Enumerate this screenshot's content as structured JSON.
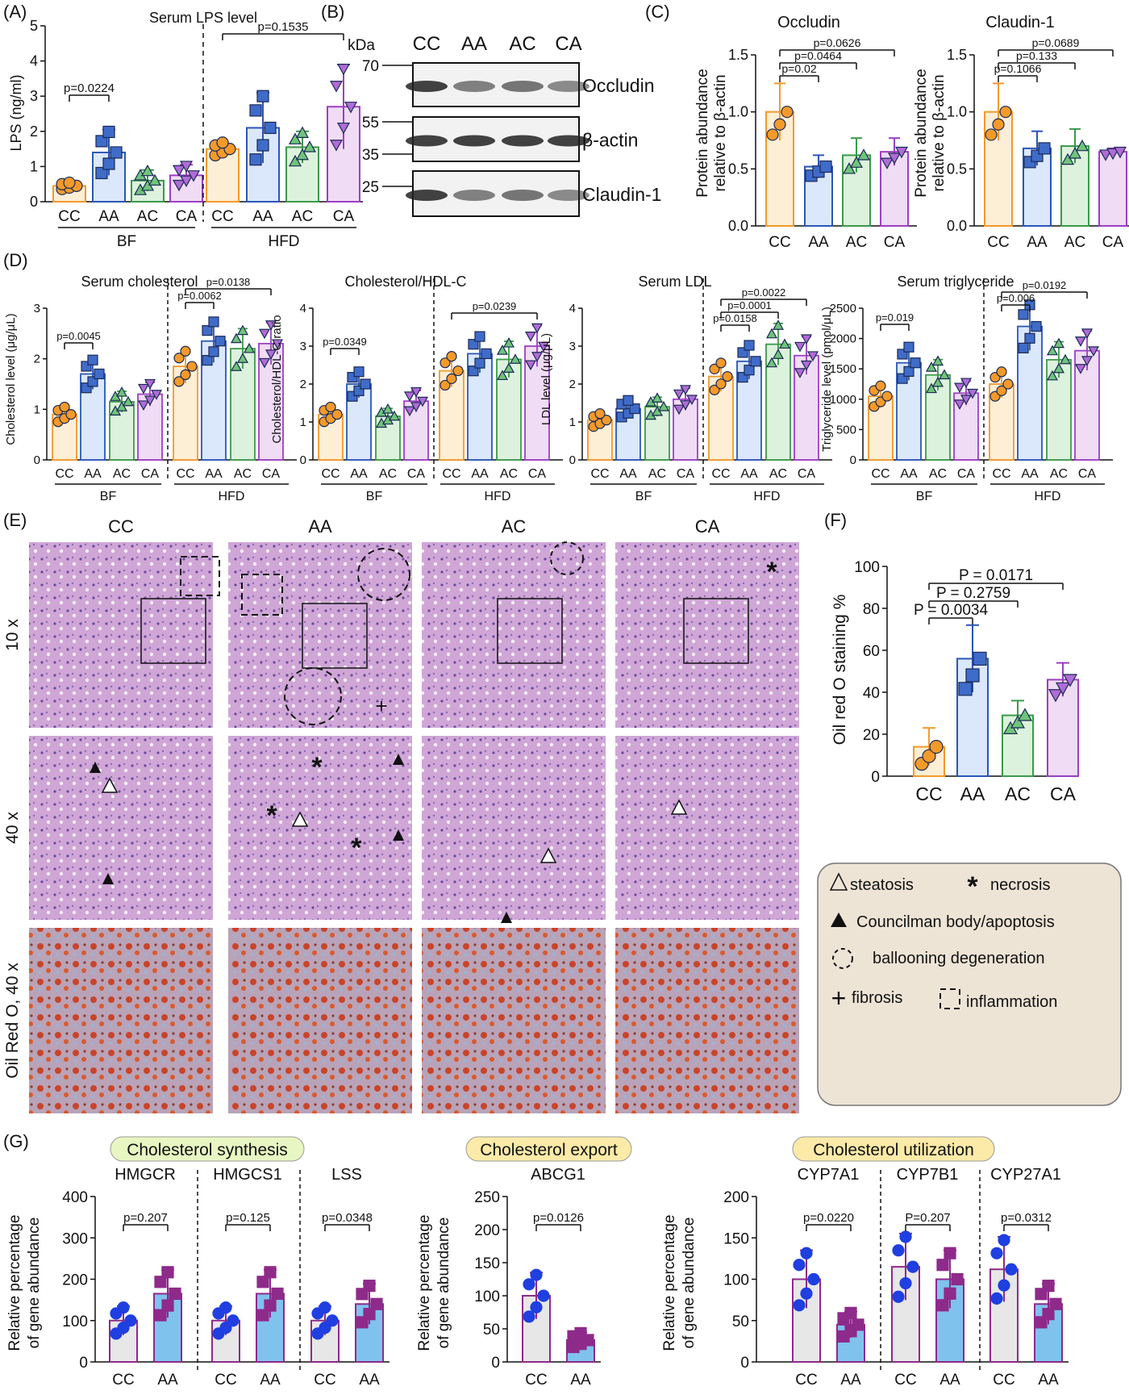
{
  "panel_labels": {
    "A": "(A)",
    "B": "(B)",
    "C": "(C)",
    "D": "(D)",
    "E": "(E)",
    "F": "(F)",
    "G": "(G)"
  },
  "colors": {
    "CC_fill": "#fdeed6",
    "CC_edge": "#f39a2a",
    "AA_fill": "#dbe8fb",
    "AA_edge": "#2b56b8",
    "AC_fill": "#ddf2dd",
    "AC_edge": "#3a9a4a",
    "CA_fill": "#f0dcf5",
    "CA_edge": "#9c3fc4",
    "G_CC_fill": "#e7e7e7",
    "G_AA_fill": "#7fc2ee",
    "G_edge": "#8e2a8a",
    "G_CC_pt": "#1f3fe0",
    "G_AA_pt": "#8e2a8a",
    "he_bg": "#c9a0d0",
    "oil_bg": "#c28e8c",
    "legend_bg": "#ede4d6",
    "tag_green": "#e7f6c2",
    "tag_yellow": "#fbeaa8"
  },
  "panelA": {
    "title": "Serum LPS level",
    "ylabel": "LPS (ng/ml)",
    "group_labels": [
      "BF",
      "HFD"
    ],
    "pvalues": [
      "p=0.0224",
      "p=0.1535"
    ]
  },
  "panelB": {
    "kda_label": "kDa",
    "markers": [
      "70",
      "55",
      "35",
      "25"
    ],
    "lanes": [
      "CC",
      "AA",
      "AC",
      "CA"
    ],
    "bands": [
      "Occludin",
      "β-actin",
      "Claudin-1"
    ]
  },
  "panelC": {
    "ylabel_1": "Protein abundance",
    "ylabel_2": "relative to β-actin",
    "occludin_p": [
      "p=0.02",
      "p=0.0464",
      "p=0.0626"
    ],
    "claudin_p": [
      "p=0.1066",
      "p=0.133",
      "p=0.0689"
    ]
  },
  "panelD": {
    "group_labels": [
      "BF",
      "HFD"
    ],
    "pvalues": {
      "chol": [
        "p=0.0045",
        "p=0.0062",
        "p=0.0138"
      ],
      "ratio": [
        "p=0.0349",
        "p=0.0239"
      ],
      "ldl": [
        "p=0.0158",
        "p=0.0001",
        "p=0.0022"
      ],
      "tg": [
        "p=0.019",
        "p=0.006",
        "p=0.0192"
      ]
    }
  },
  "panelE": {
    "columns": [
      "CC",
      "AA",
      "AC",
      "CA"
    ],
    "rows": [
      "10 x",
      "40 x",
      "Oil Red O, 40 x"
    ],
    "legend": {
      "steatosis": "steatosis",
      "necrosis": "necrosis",
      "councilman": "Councilman body/apoptosis",
      "ballooning": "ballooning degeneration",
      "fibrosis": "fibrosis",
      "inflammation": "inflammation"
    }
  },
  "panelF": {
    "ylabel": "Oil red O staining %",
    "pvalues": [
      "P = 0.0034",
      "P = 0.2759",
      "P = 0.0171"
    ],
    "pvalue_prefix": "P"
  },
  "panelG": {
    "tags": [
      "Cholesterol synthesis",
      "Cholesterol export",
      "Cholesterol utilization"
    ],
    "ylabel_1": "Relative percentage",
    "ylabel_2": "of gene abundance",
    "pvalues": {
      "HMGCR": "p=0.207",
      "HMGCS1": "p=0.125",
      "LSS": "p=0.0348",
      "ABCG1": "p=0.0126",
      "CYP7A1": "p=0.0220",
      "CYP7B1": "P=0.207",
      "CYP27A1": "p=0.0312"
    }
  },
  "chart_data": [
    {
      "id": "A",
      "type": "bar",
      "title": "Serum LPS level",
      "xlabel": "",
      "ylabel": "LPS (ng/ml)",
      "ylim": [
        0,
        5
      ],
      "groups": [
        "BF",
        "HFD"
      ],
      "categories": [
        "CC",
        "AA",
        "AC",
        "CA"
      ],
      "series": [
        {
          "name": "BF",
          "values": [
            0.45,
            1.4,
            0.6,
            0.75
          ],
          "sd": [
            0.1,
            0.65,
            0.3,
            0.3
          ]
        },
        {
          "name": "HFD",
          "values": [
            1.5,
            2.1,
            1.55,
            2.7
          ],
          "sd": [
            0.2,
            1.0,
            0.45,
            1.2
          ]
        }
      ]
    },
    {
      "id": "C-occludin",
      "type": "bar",
      "title": "Occludin",
      "ylabel": "Protein abundance relative to β-actin",
      "ylim": [
        0,
        1.5
      ],
      "categories": [
        "CC",
        "AA",
        "AC",
        "CA"
      ],
      "values": [
        1.0,
        0.52,
        0.62,
        0.65
      ],
      "sd": [
        0.25,
        0.1,
        0.15,
        0.12
      ]
    },
    {
      "id": "C-claudin",
      "type": "bar",
      "title": "Claudin-1",
      "ylabel": "Protein abundance relative to β-actin",
      "ylim": [
        0,
        1.5
      ],
      "categories": [
        "CC",
        "AA",
        "AC",
        "CA"
      ],
      "values": [
        1.0,
        0.68,
        0.7,
        0.65
      ],
      "sd": [
        0.25,
        0.15,
        0.15,
        0.03
      ]
    },
    {
      "id": "D-chol",
      "type": "bar",
      "title": "Serum cholesterol",
      "ylabel": "Cholesterol level (μg/μL)",
      "ylim": [
        0,
        3
      ],
      "groups": [
        "BF",
        "HFD"
      ],
      "categories": [
        "CC",
        "AA",
        "AC",
        "CA"
      ],
      "series": [
        {
          "name": "BF",
          "values": [
            0.9,
            1.7,
            1.15,
            1.3
          ]
        },
        {
          "name": "HFD",
          "values": [
            1.85,
            2.35,
            2.2,
            2.3
          ]
        }
      ]
    },
    {
      "id": "D-ratio",
      "type": "bar",
      "title": "Cholesterol/HDL-C",
      "ylabel": "Cholesterol/HDL-C ratio",
      "ylim": [
        0,
        4
      ],
      "groups": [
        "BF",
        "HFD"
      ],
      "categories": [
        "CC",
        "AA",
        "AC",
        "CA"
      ],
      "series": [
        {
          "name": "BF",
          "values": [
            1.2,
            2.0,
            1.15,
            1.55
          ]
        },
        {
          "name": "HFD",
          "values": [
            2.35,
            2.8,
            2.65,
            3.0
          ]
        }
      ]
    },
    {
      "id": "D-ldl",
      "type": "bar",
      "title": "Serum LDL",
      "ylabel": "LDL level (μg/μL)",
      "ylim": [
        0,
        4
      ],
      "groups": [
        "BF",
        "HFD"
      ],
      "categories": [
        "CC",
        "AA",
        "AC",
        "CA"
      ],
      "series": [
        {
          "name": "BF",
          "values": [
            1.05,
            1.35,
            1.4,
            1.6
          ]
        },
        {
          "name": "HFD",
          "values": [
            2.2,
            2.6,
            3.05,
            2.75
          ]
        }
      ]
    },
    {
      "id": "D-tg",
      "type": "bar",
      "title": "Serum triglyceride",
      "ylabel": "Triglyceride level (pmol/μL)",
      "ylim": [
        0,
        2500
      ],
      "groups": [
        "BF",
        "HFD"
      ],
      "categories": [
        "CC",
        "AA",
        "AC",
        "CA"
      ],
      "series": [
        {
          "name": "BF",
          "values": [
            1050,
            1600,
            1400,
            1100
          ]
        },
        {
          "name": "HFD",
          "values": [
            1250,
            2200,
            1650,
            1800
          ]
        }
      ]
    },
    {
      "id": "F",
      "type": "bar",
      "title": "",
      "ylabel": "Oil red O staining %",
      "ylim": [
        0,
        100
      ],
      "categories": [
        "CC",
        "AA",
        "AC",
        "CA"
      ],
      "values": [
        14,
        56,
        29,
        46
      ],
      "sd": [
        9,
        16,
        7,
        8
      ]
    },
    {
      "id": "G",
      "type": "bar",
      "ylabel": "Relative percentage of gene abundance",
      "categories": [
        "CC",
        "AA"
      ],
      "series": [
        {
          "name": "HMGCR",
          "values": [
            100,
            165
          ],
          "ylim": [
            0,
            400
          ]
        },
        {
          "name": "HMGCS1",
          "values": [
            100,
            165
          ],
          "ylim": [
            0,
            400
          ]
        },
        {
          "name": "LSS",
          "values": [
            100,
            140
          ],
          "ylim": [
            0,
            400
          ]
        },
        {
          "name": "ABCG1",
          "values": [
            100,
            33
          ],
          "ylim": [
            0,
            250
          ]
        },
        {
          "name": "CYP7A1",
          "values": [
            100,
            45
          ],
          "ylim": [
            0,
            200
          ]
        },
        {
          "name": "CYP7B1",
          "values": [
            115,
            100
          ],
          "ylim": [
            0,
            200
          ]
        },
        {
          "name": "CYP27A1",
          "values": [
            112,
            70
          ],
          "ylim": [
            0,
            200
          ]
        }
      ]
    }
  ]
}
